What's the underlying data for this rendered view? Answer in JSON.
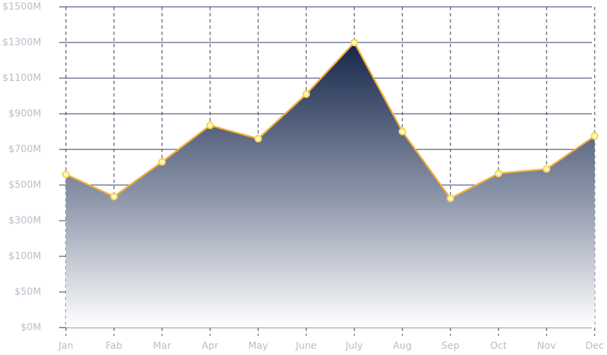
{
  "chart_data": {
    "type": "area",
    "categories": [
      "Jan",
      "Fab",
      "Mar",
      "Apr",
      "May",
      "June",
      "July",
      "Aug",
      "Sep",
      "Oct",
      "Nov",
      "Dec"
    ],
    "series": [
      {
        "values": [
          560,
          435,
          630,
          835,
          760,
          1010,
          1300,
          800,
          425,
          565,
          590,
          775
        ],
        "color": "#f1ad3a"
      }
    ],
    "ylim": [
      0,
      1500
    ],
    "yticks": [
      {
        "value": 0,
        "label": "$0M"
      },
      {
        "value": 50,
        "label": "$50M"
      },
      {
        "value": 100,
        "label": "$100M"
      },
      {
        "value": 300,
        "label": "$300M"
      },
      {
        "value": 500,
        "label": "$500M"
      },
      {
        "value": 700,
        "label": "$700M"
      },
      {
        "value": 900,
        "label": "$900M"
      },
      {
        "value": 1100,
        "label": "$1100M"
      },
      {
        "value": 1300,
        "label": "$1300M"
      },
      {
        "value": 1500,
        "label": "$1500M"
      }
    ],
    "grid": true
  }
}
